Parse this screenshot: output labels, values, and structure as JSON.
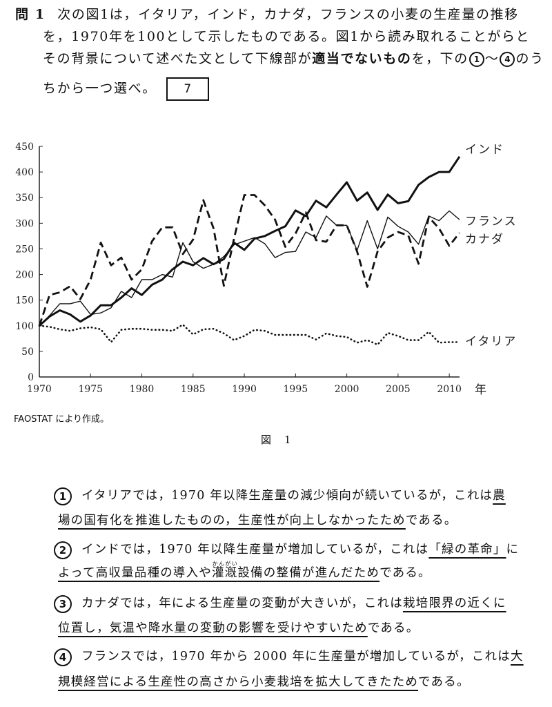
{
  "question": {
    "number": "問 1",
    "line1": "次の図1は，イタリア，インド，カナダ，フランスの小麦の生産量の推移",
    "line2": "を，1970年を100として示したものである。図1から読み取れることがらと",
    "line3_a": "その背景について述べた文として下線部が",
    "line3_bold": "適当でないもの",
    "line3_b": "を，下の",
    "line3_c1": "1",
    "line3_tilde": "～",
    "line3_c4": "4",
    "line3_d": "のう",
    "line4": "ちから一つ選べ。",
    "answer_box": "7"
  },
  "chart_data": {
    "type": "line",
    "title": "",
    "xlabel": "年",
    "ylabel": "",
    "xlim": [
      1970,
      2011
    ],
    "ylim": [
      0,
      450
    ],
    "grid": false,
    "x_ticks": [
      "1970",
      "1975",
      "1980",
      "1985",
      "1990",
      "1995",
      "2000",
      "2005",
      "2010"
    ],
    "y_ticks": [
      "0",
      "50",
      "100",
      "150",
      "200",
      "250",
      "300",
      "350",
      "400",
      "450"
    ],
    "x": [
      1970,
      1971,
      1972,
      1973,
      1974,
      1975,
      1976,
      1977,
      1978,
      1979,
      1980,
      1981,
      1982,
      1983,
      1984,
      1985,
      1986,
      1987,
      1988,
      1989,
      1990,
      1991,
      1992,
      1993,
      1994,
      1995,
      1996,
      1997,
      1998,
      1999,
      2000,
      2001,
      2002,
      2003,
      2004,
      2005,
      2006,
      2007,
      2008,
      2009,
      2010,
      2011
    ],
    "series": [
      {
        "name": "インド",
        "style": "thick-solid",
        "values": [
          100,
          118,
          130,
          122,
          108,
          120,
          140,
          140,
          155,
          173,
          160,
          180,
          190,
          210,
          225,
          218,
          232,
          220,
          230,
          262,
          248,
          270,
          275,
          285,
          294,
          325,
          314,
          344,
          331,
          356,
          380,
          344,
          360,
          326,
          356,
          339,
          343,
          375,
          390,
          400,
          400,
          430
        ]
      },
      {
        "name": "フランス",
        "style": "thin-solid",
        "values": [
          100,
          120,
          143,
          143,
          148,
          122,
          125,
          135,
          167,
          155,
          190,
          190,
          200,
          195,
          262,
          225,
          212,
          220,
          235,
          258,
          265,
          272,
          260,
          233,
          243,
          245,
          283,
          272,
          314,
          296,
          296,
          247,
          305,
          250,
          312,
          294,
          283,
          259,
          314,
          305,
          324,
          307
        ]
      },
      {
        "name": "カナダ",
        "style": "dashed",
        "values": [
          100,
          160,
          165,
          177,
          152,
          190,
          262,
          218,
          233,
          190,
          210,
          265,
          292,
          292,
          240,
          268,
          345,
          290,
          178,
          270,
          355,
          355,
          335,
          307,
          254,
          280,
          321,
          267,
          264,
          296,
          296,
          245,
          176,
          245,
          272,
          283,
          276,
          221,
          312,
          290,
          256,
          281
        ]
      },
      {
        "name": "イタリア",
        "style": "dotted",
        "values": [
          100,
          98,
          93,
          90,
          95,
          97,
          93,
          68,
          92,
          94,
          94,
          92,
          92,
          90,
          102,
          83,
          93,
          94,
          85,
          72,
          80,
          92,
          90,
          82,
          82,
          82,
          82,
          73,
          85,
          80,
          78,
          67,
          72,
          63,
          86,
          80,
          72,
          72,
          88,
          67,
          68,
          68
        ]
      }
    ],
    "source": "FAOSTAT により作成。",
    "caption": "図　1"
  },
  "options": [
    {
      "mark": "1",
      "l1_a": "イタリアでは，1970 年以降生産量の減少傾向が続いているが，これは",
      "l1_u": "農",
      "l2_u": "場の国有化を推進したものの，生産性が向上しなかったため",
      "l2_b": "である。"
    },
    {
      "mark": "2",
      "l1_a": "インドでは，1970 年以降生産量が増加しているが，これは",
      "l1_u": "「緑の革命」",
      "l1_b": "に",
      "l2_u1": "よって高収量品種の導入や",
      "l2_ruby_base": "灌漑",
      "l2_ruby": "かんがい",
      "l2_u2": "設備の整備が進んだため",
      "l2_b": "である。"
    },
    {
      "mark": "3",
      "l1_a": "カナダでは，年による生産量の変動が大きいが，これは",
      "l1_u": "栽培限界の近くに",
      "l2_u": "位置し，気温や降水量の変動の影響を受けやすいため",
      "l2_b": "である。"
    },
    {
      "mark": "4",
      "l1_a": "フランスでは，1970 年から 2000 年に生産量が増加しているが，これは",
      "l1_u": "大",
      "l2_u": "規模経営による生産性の高さから小麦栽培を拡大してきたため",
      "l2_b": "である。"
    }
  ]
}
